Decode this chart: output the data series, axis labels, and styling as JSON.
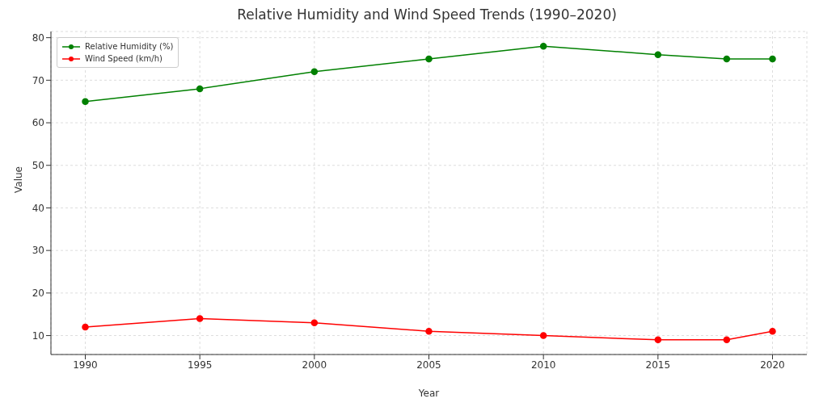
{
  "chart_data": {
    "type": "line",
    "title": "Relative Humidity and Wind Speed Trends (1990–2020)",
    "xlabel": "Year",
    "ylabel": "Value",
    "x": [
      1990,
      1995,
      2000,
      2005,
      2010,
      2015,
      2018,
      2020
    ],
    "series": [
      {
        "name": "Relative Humidity (%)",
        "color": "#008000",
        "values": [
          65,
          68,
          72,
          75,
          78,
          76,
          75,
          75
        ]
      },
      {
        "name": "Wind Speed (km/h)",
        "color": "#ff0000",
        "values": [
          12,
          14,
          13,
          11,
          10,
          9,
          9,
          11
        ]
      }
    ],
    "xlim": [
      1988.5,
      2021.5
    ],
    "xticks": [
      1990,
      1995,
      2000,
      2005,
      2010,
      2015,
      2020
    ],
    "ylim": [
      5.55,
      81.45
    ],
    "yticks": [
      10,
      20,
      30,
      40,
      50,
      60,
      70,
      80
    ],
    "grid": true,
    "legend": "top left",
    "marker": "circle",
    "line_style": "solid"
  }
}
